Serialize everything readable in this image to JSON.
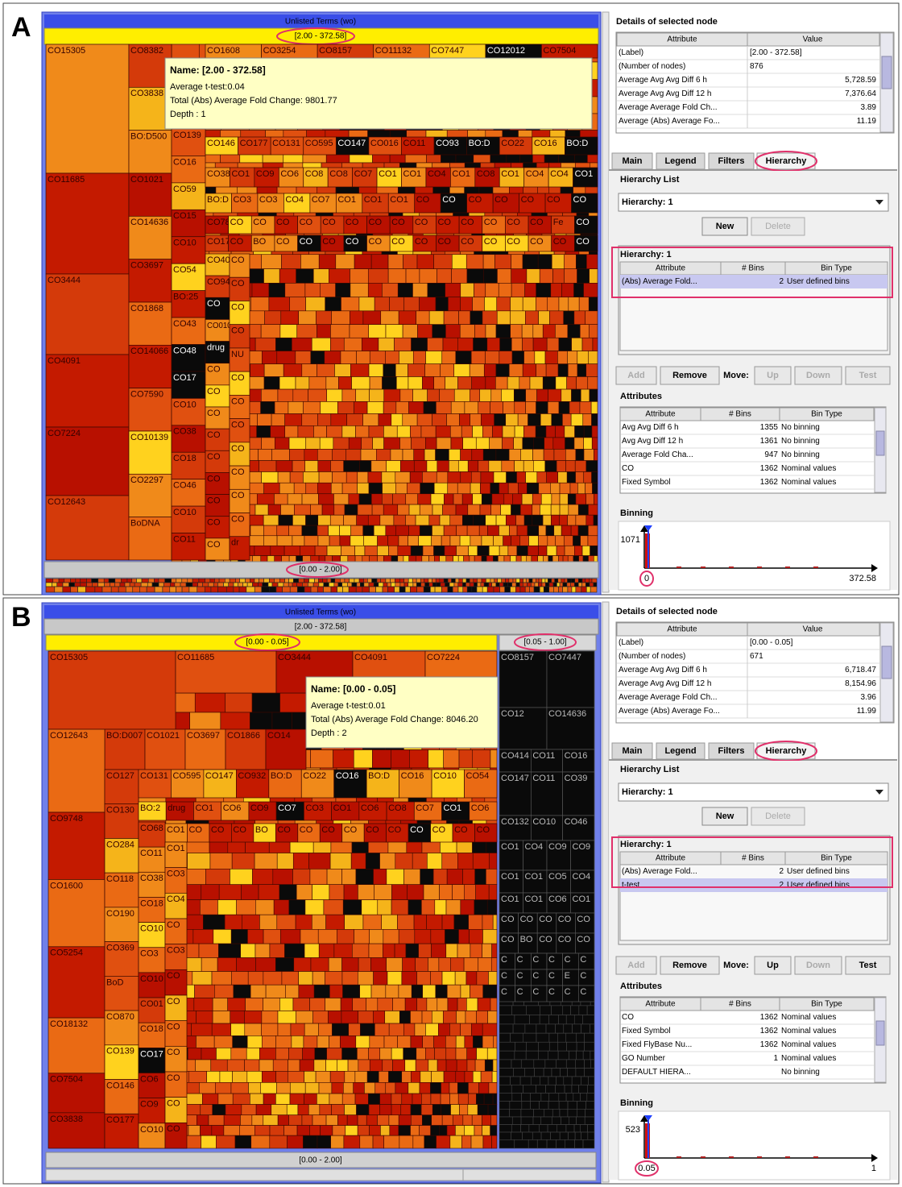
{
  "panels": [
    {
      "letter": "A",
      "treemap": {
        "title": "Unlisted Terms (wo)",
        "bin": "[2.00 - 372.58]",
        "bottom_bin": "[0.00 - 2.00]",
        "groups": [
          [
            "CO15305",
            "CO11685",
            "CO3444",
            "CO4091",
            "CO7224",
            "CO12643"
          ],
          [
            "CO8382",
            "CO3838",
            "BO:D500",
            "CO1021",
            "CO14636",
            "CO3697",
            "CO1868",
            "CO14066",
            "CO7590",
            "CO10139",
            "CO2297",
            "BoDNA"
          ],
          [
            "CO139",
            "CO16",
            "CO59",
            "CO15",
            "CO10",
            "CO54",
            "BO:25",
            "CO43",
            "CO48",
            "CO17",
            "CO10",
            "CO38",
            "CO18",
            "CO46",
            "CO10",
            "CO11"
          ],
          [
            "CO1608",
            "CO3254",
            "CO8157",
            "CO11132",
            "CO7447",
            "CO12012",
            "CO7504"
          ],
          [
            "CO146",
            "CO177",
            "CO131",
            "CO595",
            "CO147",
            "CO016",
            "CO11",
            "CO93",
            "BO:D",
            "CO22",
            "CO16",
            "BO:D"
          ],
          [
            "CO38",
            "CO1",
            "CO9",
            "CO6",
            "CO8",
            "CO8",
            "CO7",
            "CO1",
            "CO1",
            "CO4",
            "CO1",
            "CO8",
            "CO1",
            "CO4",
            "CO4",
            "CO1"
          ],
          [
            "BO:D",
            "CO3",
            "CO3",
            "CO4",
            "CO7",
            "CO1",
            "CO1",
            "CO1",
            "CO",
            "CO",
            "CO",
            "CO",
            "CO",
            "CO",
            "CO"
          ],
          [
            "CO78",
            "CO",
            "CO",
            "CO",
            "CO",
            "CO",
            "CO",
            "CO",
            "CO",
            "CO",
            "CO",
            "CO",
            "CO",
            "CO",
            "CO",
            "Fe",
            "CO"
          ],
          [
            "CO17",
            "CO",
            "BO",
            "CO",
            "CO",
            "CO",
            "CO",
            "CO",
            "CO",
            "CO",
            "CO",
            "CO",
            "CO",
            "CO",
            "CO",
            "CO",
            "CO"
          ],
          [
            "CO40",
            "CO94",
            "CO",
            "CO010",
            "drug",
            "CO",
            "CO",
            "CO",
            "CO",
            "CO",
            "CO",
            "CO",
            "CO",
            "CO"
          ],
          [
            "CO",
            "CO",
            "CO",
            "CO",
            "NU",
            "CO",
            "CO",
            "CO",
            "CO",
            "CO",
            "CO",
            "CO",
            "dr"
          ]
        ],
        "tooltip": {
          "name": "Name: [2.00 - 372.58]",
          "lines": [
            "Average t-test:0.04",
            "Total (Abs) Average Fold Change: 9801.77",
            "Depth : 1"
          ]
        }
      },
      "details": {
        "title": "Details of selected node",
        "header": [
          "Attribute",
          "Value"
        ],
        "rows": [
          [
            "(Label)",
            "[2.00 - 372.58]"
          ],
          [
            "(Number of nodes)",
            "876"
          ],
          [
            "Average Avg Avg Diff 6 h",
            "5,728.59"
          ],
          [
            "Average Avg Avg Diff 12 h",
            "7,376.64"
          ],
          [
            "Average Average Fold Ch...",
            "3.89"
          ],
          [
            "Average (Abs) Average Fo...",
            "11.19"
          ]
        ]
      },
      "tabs": [
        "Main",
        "Legend",
        "Filters",
        "Hierarchy"
      ],
      "hierarchy_list": {
        "title": "Hierarchy List",
        "selected": "Hierarchy: 1",
        "buttons": [
          "New",
          "Delete"
        ]
      },
      "hierarchy": {
        "title": "Hierarchy: 1",
        "header": [
          "Attribute",
          "# Bins",
          "Bin Type"
        ],
        "rows": [
          [
            "(Abs) Average Fold...",
            "2",
            "User defined bins"
          ]
        ]
      },
      "buttons": [
        "Add",
        "Remove",
        "Move:",
        "Up",
        "Down",
        "Test"
      ],
      "attributes": {
        "title": "Attributes",
        "header": [
          "Attribute",
          "# Bins",
          "Bin Type"
        ],
        "rows": [
          [
            "Avg Avg Diff 6 h",
            "1355",
            "No binning"
          ],
          [
            "Avg Avg Diff 12 h",
            "1361",
            "No binning"
          ],
          [
            "Average Fold Cha...",
            "947",
            "No binning"
          ],
          [
            "CO",
            "1362",
            "Nominal values"
          ],
          [
            "Fixed Symbol",
            "1362",
            "Nominal values"
          ]
        ]
      },
      "binning": {
        "title": "Binning",
        "max": "1071",
        "min": "0",
        "end": "372.58"
      }
    },
    {
      "letter": "B",
      "treemap": {
        "title": "Unlisted Terms (wo)",
        "bin": "[2.00 - 372.58]",
        "sub_bins": [
          "[0.00 - 0.05]",
          "[0.05 - 1.00]"
        ],
        "bottom_bin": "[0.00 - 2.00]",
        "groups": [
          [
            "CO15305"
          ],
          [
            "CO11685",
            "CO3444",
            "CO4091",
            "CO7224"
          ],
          [
            "BO:D007",
            "CO1021",
            "CO3697",
            "CO1866",
            "CO14"
          ],
          [
            "CO12643",
            "CO9748",
            "CO1600",
            "CO5254",
            "CO18132",
            "CO7504",
            "CO3838"
          ],
          [
            "CO127",
            "CO130",
            "CO284",
            "CO118",
            "CO190",
            "CO369",
            "BoD",
            "CO870",
            "CO139",
            "CO146",
            "CO177"
          ],
          [
            "CO131",
            "CO595",
            "CO147",
            "CO932",
            "BO:D",
            "CO22",
            "CO16",
            "BO:D",
            "CO16",
            "CO10",
            "CO54"
          ],
          [
            "BO:2",
            "drug",
            "CO1",
            "CO6",
            "CO9",
            "CO7",
            "CO3",
            "CO1",
            "CO6",
            "CO8",
            "CO7",
            "CO1",
            "CO6"
          ],
          [
            "CO1",
            "CO",
            "CO",
            "CO",
            "BO",
            "CO",
            "CO",
            "CO",
            "CO",
            "CO",
            "CO",
            "CO",
            "CO",
            "CO",
            "CO"
          ],
          [
            "CO68",
            "CO11",
            "CO38",
            "CO18",
            "CO10",
            "CO3",
            "CO10",
            "CO01",
            "CO18",
            "CO17",
            "CO6",
            "CO9",
            "CO10"
          ],
          [
            "CO1",
            "CO3",
            "CO4",
            "CO",
            "CO3",
            "CO",
            "CO",
            "CO",
            "CO",
            "CO",
            "CO",
            "CO"
          ],
          [
            "CO8157",
            "CO7447"
          ],
          [
            "CO12",
            "CO14636"
          ],
          [
            "CO414",
            "CO11",
            "CO16"
          ],
          [
            "CO147",
            "CO11",
            "CO39"
          ],
          [
            "CO132",
            "CO10",
            "CO46"
          ],
          [
            "CO1",
            "CO4",
            "CO9",
            "CO9"
          ],
          [
            "CO1",
            "CO1",
            "CO5",
            "CO4"
          ],
          [
            "CO1",
            "CO1",
            "CO6",
            "CO1"
          ],
          [
            "CO",
            "CO",
            "CO",
            "CO",
            "CO"
          ],
          [
            "CO",
            "BO",
            "CO",
            "CO",
            "CO"
          ],
          [
            "C",
            "C",
            "C",
            "C",
            "C",
            "C"
          ],
          [
            "C",
            "C",
            "C",
            "C",
            "E",
            "C"
          ],
          [
            "C",
            "C",
            "C",
            "C",
            "C",
            "C"
          ]
        ],
        "tooltip": {
          "name": "Name: [0.00 - 0.05]",
          "lines": [
            "Average t-test:0.01",
            "Total (Abs) Average Fold Change: 8046.20",
            "Depth : 2"
          ]
        }
      },
      "details": {
        "title": "Details of selected node",
        "header": [
          "Attribute",
          "Value"
        ],
        "rows": [
          [
            "(Label)",
            "[0.00 - 0.05]"
          ],
          [
            "(Number of nodes)",
            "671"
          ],
          [
            "Average Avg Avg Diff 6 h",
            "6,718.47"
          ],
          [
            "Average Avg Avg Diff 12 h",
            "8,154.96"
          ],
          [
            "Average Average Fold Ch...",
            "3.96"
          ],
          [
            "Average (Abs) Average Fo...",
            "11.99"
          ]
        ]
      },
      "tabs": [
        "Main",
        "Legend",
        "Filters",
        "Hierarchy"
      ],
      "hierarchy_list": {
        "title": "Hierarchy List",
        "selected": "Hierarchy: 1",
        "buttons": [
          "New",
          "Delete"
        ]
      },
      "hierarchy": {
        "title": "Hierarchy: 1",
        "header": [
          "Attribute",
          "# Bins",
          "Bin Type"
        ],
        "rows": [
          [
            "(Abs) Average Fold...",
            "2",
            "User defined bins"
          ],
          [
            "t-test",
            "2",
            "User defined bins"
          ]
        ]
      },
      "buttons": [
        "Add",
        "Remove",
        "Move:",
        "Up",
        "Down",
        "Test"
      ],
      "attributes": {
        "title": "Attributes",
        "header": [
          "Attribute",
          "# Bins",
          "Bin Type"
        ],
        "rows": [
          [
            "CO",
            "1362",
            "Nominal values"
          ],
          [
            "Fixed Symbol",
            "1362",
            "Nominal values"
          ],
          [
            "Fixed FlyBase Nu...",
            "1362",
            "Nominal values"
          ],
          [
            "GO Number",
            "1",
            "Nominal values"
          ],
          [
            "DEFAULT HIERA...",
            null,
            "No binning"
          ]
        ]
      },
      "binning": {
        "title": "Binning",
        "max": "523",
        "min": "0.05",
        "end": "1"
      }
    }
  ]
}
